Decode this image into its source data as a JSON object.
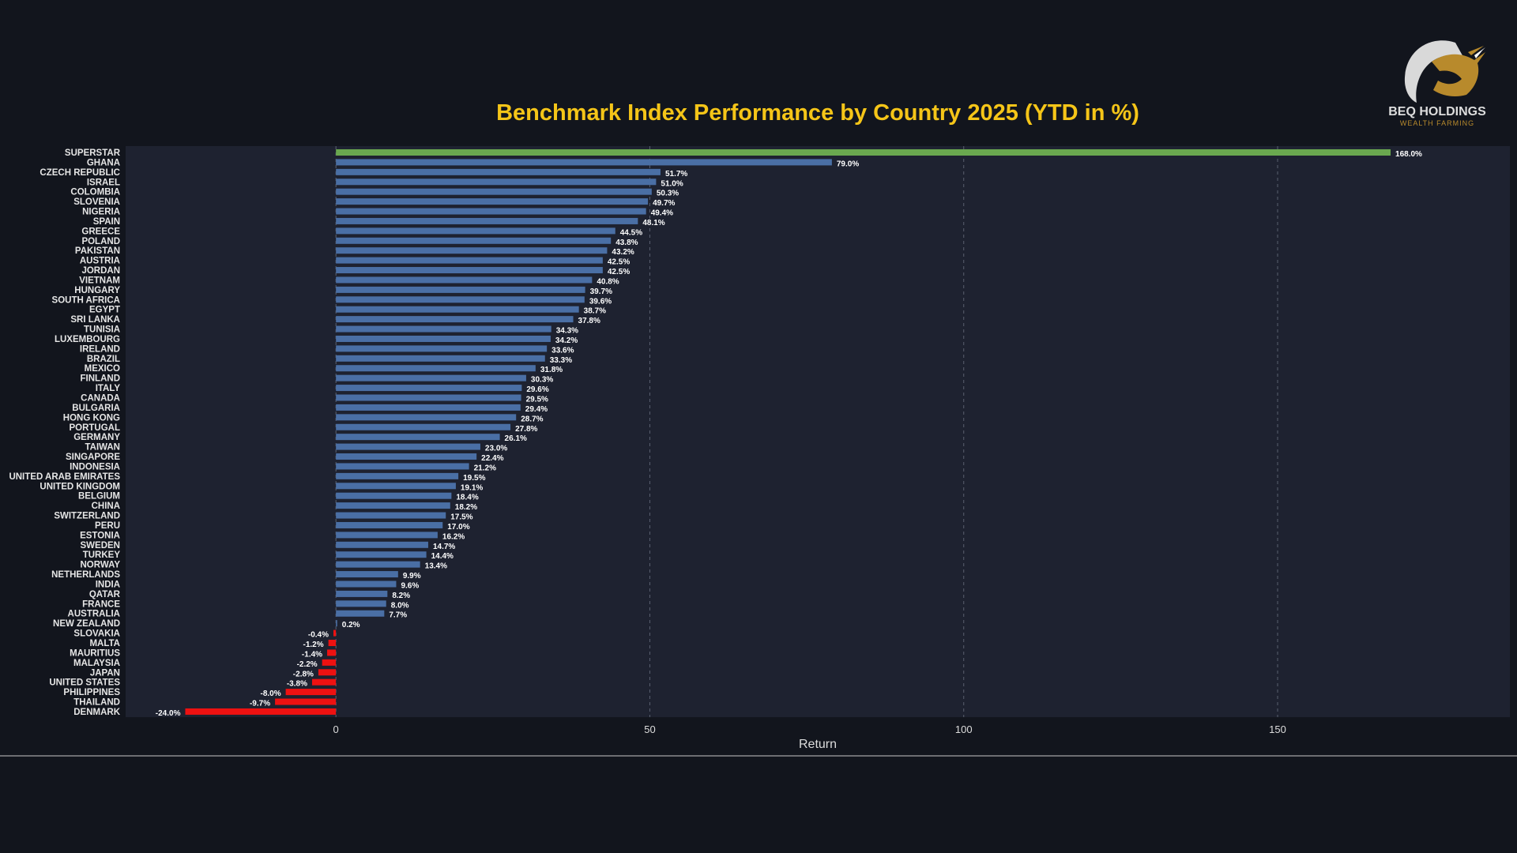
{
  "brand": {
    "name": "BEQ HOLDINGS",
    "tagline": "WEALTH FARMING",
    "gold": "#b88a2c"
  },
  "colors": {
    "background": "#12151d",
    "plot_area": "#1e2230",
    "grid": "#5a6070",
    "title": "#f5c518",
    "positive": "#4a6fa5",
    "negative": "#ee1111",
    "highlight": "#6aa84f"
  },
  "chart_data": {
    "type": "bar",
    "orientation": "horizontal",
    "title": "Benchmark Index Performance by Country 2025 (YTD in %)",
    "xlabel": "Return",
    "ylabel": "",
    "xlim": [
      -33.5,
      187
    ],
    "xticks": [
      0,
      50,
      100,
      150
    ],
    "grid": true,
    "categories": [
      "SUPERSTAR",
      "GHANA",
      "CZECH REPUBLIC",
      "ISRAEL",
      "COLOMBIA",
      "SLOVENIA",
      "NIGERIA",
      "SPAIN",
      "GREECE",
      "POLAND",
      "PAKISTAN",
      "AUSTRIA",
      "JORDAN",
      "VIETNAM",
      "HUNGARY",
      "SOUTH AFRICA",
      "EGYPT",
      "SRI LANKA",
      "TUNISIA",
      "LUXEMBOURG",
      "IRELAND",
      "BRAZIL",
      "MEXICO",
      "FINLAND",
      "ITALY",
      "CANADA",
      "BULGARIA",
      "HONG KONG",
      "PORTUGAL",
      "GERMANY",
      "TAIWAN",
      "SINGAPORE",
      "INDONESIA",
      "UNITED ARAB EMIRATES",
      "UNITED KINGDOM",
      "BELGIUM",
      "CHINA",
      "SWITZERLAND",
      "PERU",
      "ESTONIA",
      "SWEDEN",
      "TURKEY",
      "NORWAY",
      "NETHERLANDS",
      "INDIA",
      "QATAR",
      "FRANCE",
      "AUSTRALIA",
      "NEW ZEALAND",
      "SLOVAKIA",
      "MALTA",
      "MAURITIUS",
      "MALAYSIA",
      "JAPAN",
      "UNITED STATES",
      "PHILIPPINES",
      "THAILAND",
      "DENMARK"
    ],
    "values": [
      168.0,
      79.0,
      51.7,
      51.0,
      50.3,
      49.7,
      49.4,
      48.1,
      44.5,
      43.8,
      43.2,
      42.5,
      42.5,
      40.8,
      39.7,
      39.6,
      38.7,
      37.8,
      34.3,
      34.2,
      33.6,
      33.3,
      31.8,
      30.3,
      29.6,
      29.5,
      29.4,
      28.7,
      27.8,
      26.1,
      23.0,
      22.4,
      21.2,
      19.5,
      19.1,
      18.4,
      18.2,
      17.5,
      17.0,
      16.2,
      14.7,
      14.4,
      13.4,
      9.9,
      9.6,
      8.2,
      8.0,
      7.7,
      0.2,
      -0.4,
      -1.2,
      -1.4,
      -2.2,
      -2.8,
      -3.8,
      -8.0,
      -9.7,
      -24.0
    ],
    "value_labels": [
      "168.0%",
      "79.0%",
      "51.7%",
      "51.0%",
      "50.3%",
      "49.7%",
      "49.4%",
      "48.1%",
      "44.5%",
      "43.8%",
      "43.2%",
      "42.5%",
      "42.5%",
      "40.8%",
      "39.7%",
      "39.6%",
      "38.7%",
      "37.8%",
      "34.3%",
      "34.2%",
      "33.6%",
      "33.3%",
      "31.8%",
      "30.3%",
      "29.6%",
      "29.5%",
      "29.4%",
      "28.7%",
      "27.8%",
      "26.1%",
      "23.0%",
      "22.4%",
      "21.2%",
      "19.5%",
      "19.1%",
      "18.4%",
      "18.2%",
      "17.5%",
      "17.0%",
      "16.2%",
      "14.7%",
      "14.4%",
      "13.4%",
      "9.9%",
      "9.6%",
      "8.2%",
      "8.0%",
      "7.7%",
      "0.2%",
      "-0.4%",
      "-1.2%",
      "-1.4%",
      "-2.2%",
      "-2.8%",
      "-3.8%",
      "-8.0%",
      "-9.7%",
      "-24.0%"
    ],
    "highlight_category": "SUPERSTAR"
  }
}
